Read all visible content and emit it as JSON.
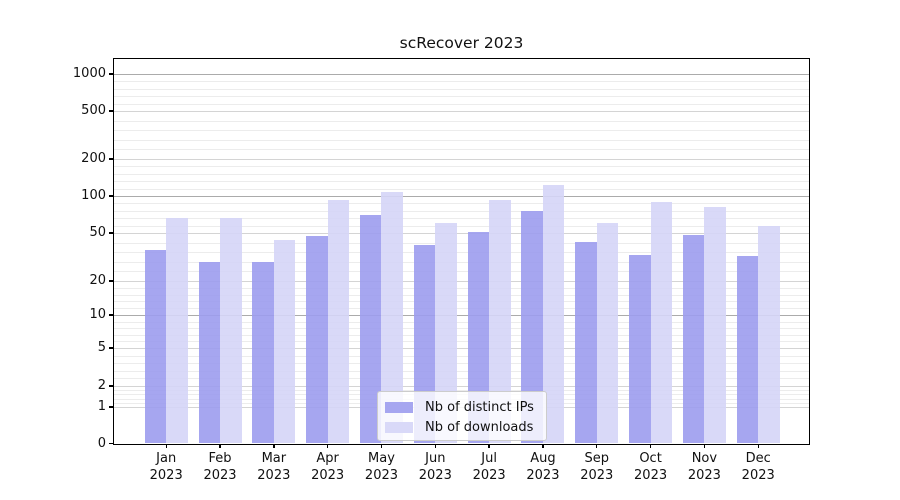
{
  "chart_data": {
    "type": "bar",
    "title": "scRecover 2023",
    "categories": [
      "Jan",
      "Feb",
      "Mar",
      "Apr",
      "May",
      "Jun",
      "Jul",
      "Aug",
      "Sep",
      "Oct",
      "Nov",
      "Dec"
    ],
    "x_tick_year_line": "2023",
    "series": [
      {
        "name": "Nb of distinct IPs",
        "color": "#9c9cee",
        "values": [
          36,
          29,
          29,
          47,
          70,
          40,
          51,
          76,
          42,
          33,
          48,
          32
        ]
      },
      {
        "name": "Nb of downloads",
        "color": "#d5d5f7",
        "values": [
          66,
          66,
          44,
          93,
          107,
          60,
          92,
          123,
          60,
          90,
          82,
          57
        ]
      }
    ],
    "y_ticks": [
      0,
      1,
      2,
      5,
      10,
      20,
      50,
      100,
      200,
      500,
      1000
    ],
    "y_scale": "pseudo-log",
    "ylim": [
      0,
      1350
    ],
    "grid": true,
    "legend_position": "lower center"
  },
  "colors": {
    "grid_major_strong": "#ababab",
    "grid_major": "#d4d4d4",
    "grid_minor": "#ececec",
    "spine": "#000000",
    "text": "#111111",
    "legend_border": "#cccccc"
  }
}
